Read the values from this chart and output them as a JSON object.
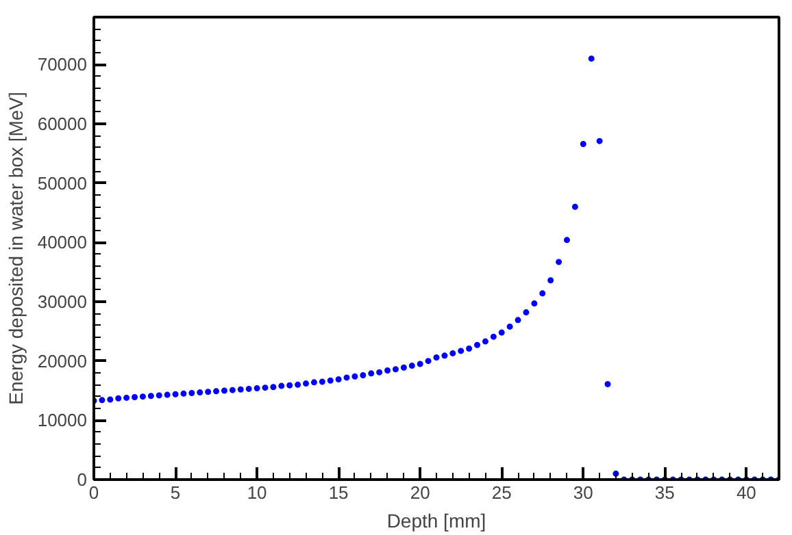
{
  "chart_data": {
    "type": "scatter",
    "xlabel": "Depth [mm]",
    "ylabel": "Energy deposited in water box [MeV]",
    "x": [
      0,
      0.5,
      1,
      1.5,
      2,
      2.5,
      3,
      3.5,
      4,
      4.5,
      5,
      5.5,
      6,
      6.5,
      7,
      7.5,
      8,
      8.5,
      9,
      9.5,
      10,
      10.5,
      11,
      11.5,
      12,
      12.5,
      13,
      13.5,
      14,
      14.5,
      15,
      15.5,
      16,
      16.5,
      17,
      17.5,
      18,
      18.5,
      19,
      19.5,
      20,
      20.5,
      21,
      21.5,
      22,
      22.5,
      23,
      23.5,
      24,
      24.5,
      25,
      25.5,
      26,
      26.5,
      27,
      27.5,
      28,
      28.5,
      29,
      29.5,
      30,
      30.5,
      31,
      31.5,
      32,
      32.5,
      33,
      33.5,
      34,
      34.5,
      35,
      35.5,
      36,
      36.5,
      37,
      37.5,
      38,
      38.5,
      39,
      39.5,
      40,
      40.5,
      41,
      41.5,
      42
    ],
    "series": [
      {
        "color": "#0000ff",
        "values": [
          13300,
          13400,
          13500,
          13700,
          13800,
          13900,
          14000,
          14100,
          14200,
          14300,
          14400,
          14500,
          14600,
          14700,
          14800,
          14900,
          15000,
          15100,
          15200,
          15300,
          15400,
          15500,
          15600,
          15800,
          15900,
          16000,
          16200,
          16400,
          16500,
          16700,
          16900,
          17200,
          17400,
          17600,
          17900,
          18100,
          18400,
          18600,
          18900,
          19200,
          19500,
          20000,
          20600,
          20900,
          21300,
          21700,
          22100,
          22700,
          23300,
          24100,
          24800,
          25800,
          26900,
          28200,
          29700,
          31400,
          33600,
          36700,
          40400,
          46000,
          56600,
          71000,
          57100,
          16100,
          1000,
          0,
          0,
          0,
          0,
          0,
          0,
          0,
          0,
          0,
          0,
          0,
          0,
          0,
          0,
          0,
          0,
          0,
          0,
          0,
          0
        ]
      }
    ],
    "xlim": [
      0,
      42
    ],
    "ylim": [
      0,
      78000
    ],
    "xticks": [
      0,
      5,
      10,
      15,
      20,
      25,
      30,
      35,
      40
    ],
    "yticks": [
      0,
      10000,
      20000,
      30000,
      40000,
      50000,
      60000,
      70000
    ],
    "grid": false,
    "marker": "circle"
  }
}
